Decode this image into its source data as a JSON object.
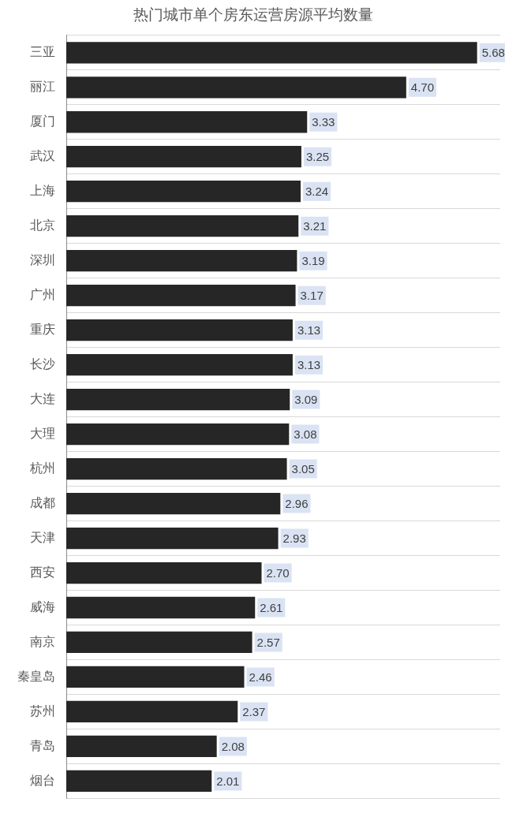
{
  "chart_data": {
    "type": "bar",
    "orientation": "horizontal",
    "title": "热门城市单个房东运营房源平均数量",
    "categories": [
      "三亚",
      "丽江",
      "厦门",
      "武汉",
      "上海",
      "北京",
      "深圳",
      "广州",
      "重庆",
      "长沙",
      "大连",
      "大理",
      "杭州",
      "成都",
      "天津",
      "西安",
      "威海",
      "南京",
      "秦皇岛",
      "苏州",
      "青岛",
      "烟台"
    ],
    "values": [
      5.68,
      4.7,
      3.33,
      3.25,
      3.24,
      3.21,
      3.19,
      3.17,
      3.13,
      3.13,
      3.09,
      3.08,
      3.05,
      2.96,
      2.93,
      2.7,
      2.61,
      2.57,
      2.46,
      2.37,
      2.08,
      2.01
    ],
    "value_labels": [
      "5.68",
      "4.70",
      "3.33",
      "3.25",
      "3.24",
      "3.21",
      "3.19",
      "3.17",
      "3.13",
      "3.13",
      "3.09",
      "3.08",
      "3.05",
      "2.96",
      "2.93",
      "2.70",
      "2.61",
      "2.57",
      "2.46",
      "2.37",
      "2.08",
      "2.01"
    ],
    "color": "#262626",
    "grid": "y"
  }
}
